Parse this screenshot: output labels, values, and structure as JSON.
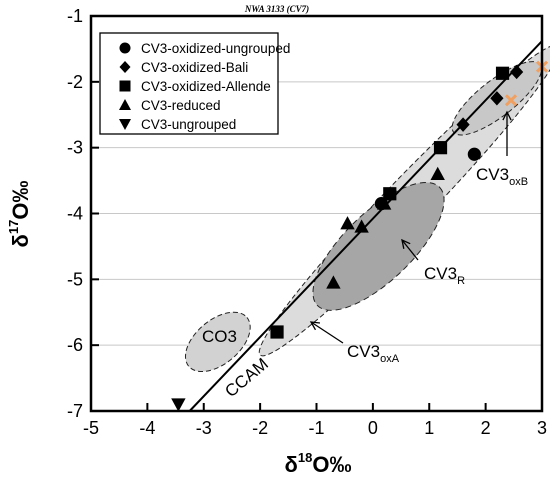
{
  "chart_data": {
    "type": "scatter",
    "title": "NWA 3133 (CV7)",
    "xlabel": {
      "base": "δ",
      "sup": "18",
      "tail": "O‰"
    },
    "ylabel": {
      "base": "δ",
      "sup": "17",
      "tail": "O‰"
    },
    "xlim": [
      -5,
      3
    ],
    "ylim": [
      -7,
      -1
    ],
    "x_ticks": [
      "-5",
      "-4",
      "-3",
      "-2",
      "-1",
      "0",
      "1",
      "2",
      "3"
    ],
    "y_ticks": [
      "-1",
      "-2",
      "-3",
      "-4",
      "-5",
      "-6",
      "-7"
    ],
    "grid": "horizontal",
    "legend_position": "top-left",
    "series": [
      {
        "name": "CV3-oxidized-ungrouped",
        "marker": "circle",
        "color": "#000000",
        "points": [
          [
            0.15,
            -3.85
          ],
          [
            1.8,
            -3.1
          ]
        ]
      },
      {
        "name": "CV3-oxidized-Bali",
        "marker": "diamond",
        "color": "#000000",
        "points": [
          [
            1.6,
            -2.65
          ],
          [
            2.2,
            -2.25
          ],
          [
            2.55,
            -1.85
          ]
        ]
      },
      {
        "name": "CV3-oxidized-Allende",
        "marker": "square",
        "color": "#000000",
        "points": [
          [
            2.3,
            -1.87
          ],
          [
            1.2,
            -3.0
          ],
          [
            0.3,
            -3.7
          ],
          [
            -1.7,
            -5.8
          ]
        ]
      },
      {
        "name": "CV3-reduced",
        "marker": "triangle-up",
        "color": "#000000",
        "points": [
          [
            1.15,
            -3.4
          ],
          [
            0.2,
            -3.85
          ],
          [
            -0.2,
            -4.2
          ],
          [
            -0.45,
            -4.15
          ],
          [
            -0.7,
            -5.05
          ]
        ]
      },
      {
        "name": "CV3-ungrouped",
        "marker": "triangle-down",
        "color": "#000000",
        "points": [
          [
            -3.45,
            -6.9
          ]
        ]
      }
    ],
    "special_points": [
      {
        "marker": "x-box",
        "color": "#f0a060",
        "points": [
          [
            2.45,
            -2.28
          ],
          [
            3.0,
            -1.77
          ]
        ]
      }
    ],
    "lines": [
      {
        "label": "CCAM",
        "x": [
          -3.25,
          3.0
        ],
        "y": [
          -7.0,
          -1.38
        ]
      }
    ],
    "regions": [
      {
        "label": "CO3",
        "label_sub": ""
      },
      {
        "label": "CV3",
        "label_sub": "R"
      },
      {
        "label": "CV3",
        "label_sub": "oxA"
      },
      {
        "label": "CV3",
        "label_sub": "oxB"
      }
    ]
  }
}
